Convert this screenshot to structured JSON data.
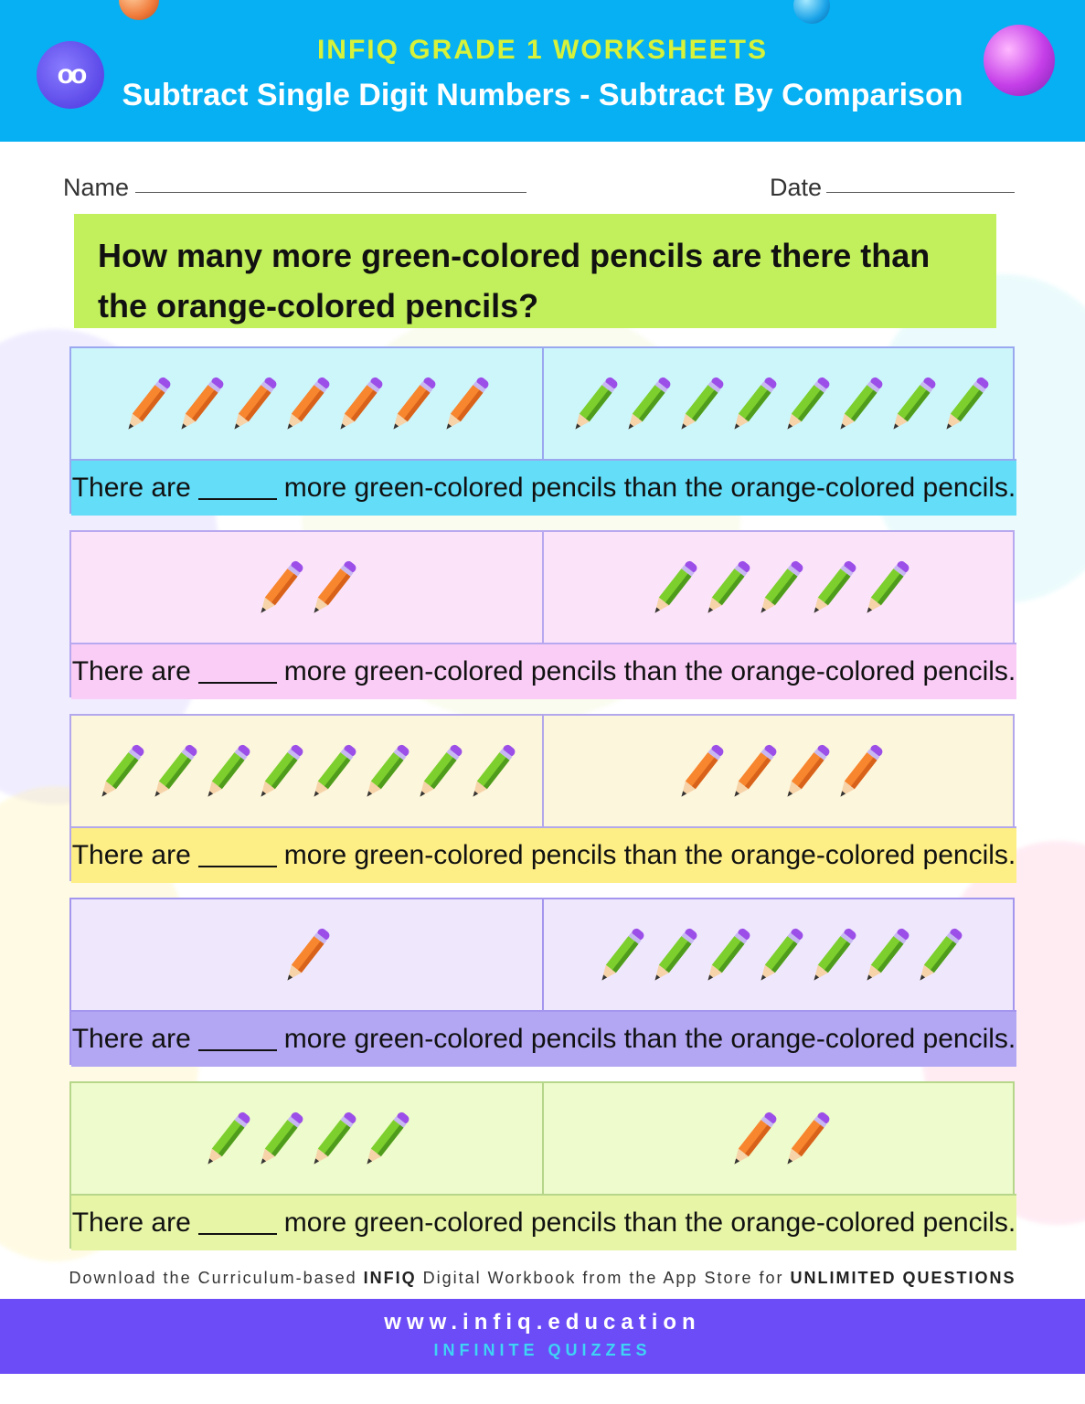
{
  "header": {
    "brand": "INFIQ GRADE 1 WORKSHEETS",
    "title": "Subtract Single Digit Numbers - Subtract By Comparison",
    "logo_text": "oo"
  },
  "fields": {
    "name_label": "Name",
    "date_label": "Date"
  },
  "question": "How many more green-colored pencils are there than the orange-colored pencils?",
  "rows": [
    {
      "left": {
        "color": "orange",
        "count": 7
      },
      "right": {
        "color": "green",
        "count": 8
      },
      "sentence_start": "There are",
      "sentence_end": "more green-colored pencils than the orange-colored pencils.",
      "tint": "#cdf6fb",
      "strip": "#63ddf8",
      "border": "#9aa8f0"
    },
    {
      "left": {
        "color": "orange",
        "count": 2
      },
      "right": {
        "color": "green",
        "count": 5
      },
      "sentence_start": "There are",
      "sentence_end": "more green-colored pencils than the orange-colored pencils.",
      "tint": "#fbe4fa",
      "strip": "#f9cdf6",
      "border": "#b8a8f0"
    },
    {
      "left": {
        "color": "green",
        "count": 8
      },
      "right": {
        "color": "orange",
        "count": 4
      },
      "sentence_start": "There are",
      "sentence_end": "more green-colored pencils than the orange-colored pencils.",
      "tint": "#fcf6dc",
      "strip": "#fdee85",
      "border": "#b4a8ec"
    },
    {
      "left": {
        "color": "orange",
        "count": 1
      },
      "right": {
        "color": "green",
        "count": 7
      },
      "sentence_start": "There are",
      "sentence_end": "more green-colored pencils than the orange-colored pencils.",
      "tint": "#efe8fd",
      "strip": "#b3a6f3",
      "border": "#a496ee"
    },
    {
      "left": {
        "color": "green",
        "count": 4
      },
      "right": {
        "color": "orange",
        "count": 2
      },
      "sentence_start": "There are",
      "sentence_end": "more green-colored pencils than the orange-colored pencils.",
      "tint": "#eefbcc",
      "strip": "#e6f5a6",
      "border": "#b6d68a"
    }
  ],
  "footer": {
    "download_prefix": "Download the Curriculum-based",
    "download_brand": "INFIQ",
    "download_middle": "Digital Workbook from the App Store for",
    "download_emphasis": "UNLIMITED QUESTIONS",
    "url": "www.infiq.education",
    "tagline": "INFINITE QUIZZES"
  },
  "colors": {
    "header_bg": "#07b0f2",
    "brand": "#d6f23a",
    "question_bg": "#c2ef5c",
    "footer_bg": "#6b4cf6",
    "pencil_orange": "#f7862f",
    "pencil_green": "#7ccf2c",
    "pencil_cap": "#9c4fe8"
  }
}
